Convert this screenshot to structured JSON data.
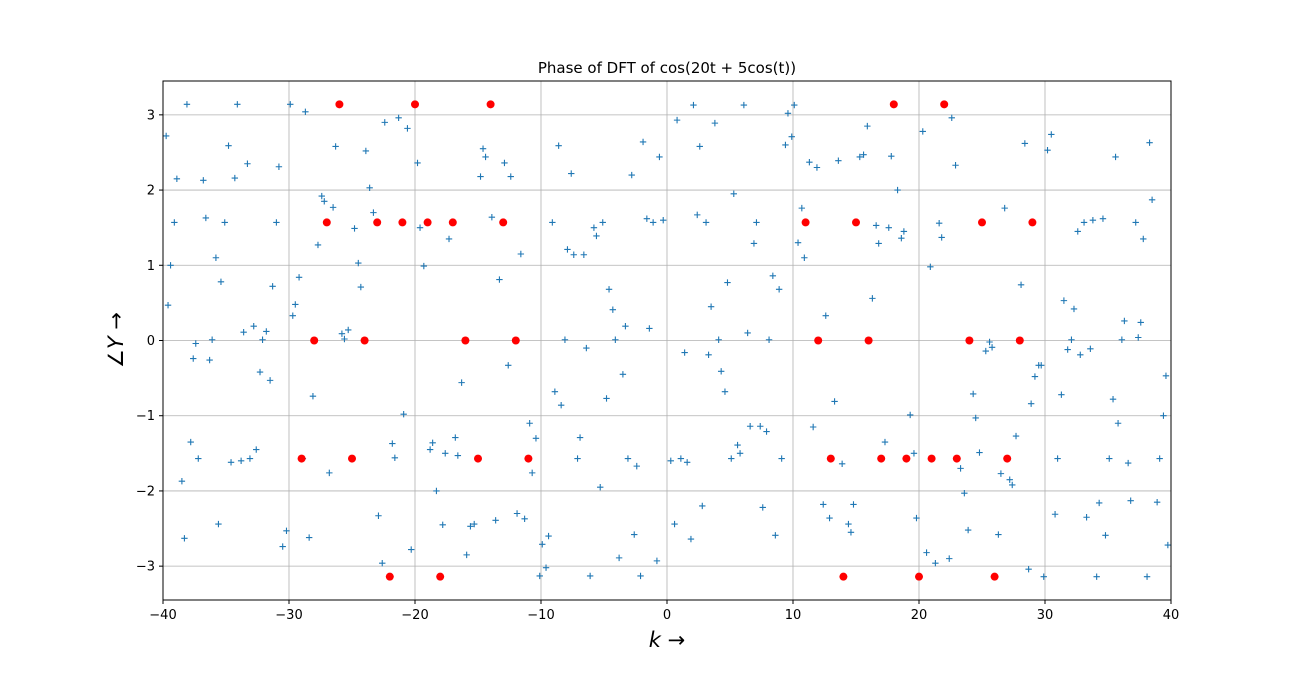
{
  "chart_data": {
    "type": "scatter",
    "title": "Phase of DFT of cos(20t + 5cos(t))",
    "xlabel": "k →",
    "ylabel": "∠Y →",
    "xlim": [
      -40,
      40
    ],
    "ylim": [
      -3.45,
      3.45
    ],
    "xticks": [
      -40,
      -30,
      -20,
      -10,
      0,
      10,
      20,
      30,
      40
    ],
    "yticks": [
      -3,
      -2,
      -1,
      0,
      1,
      2,
      3
    ],
    "grid": true,
    "series": [
      {
        "marker": "plus",
        "color": "#1f77b4",
        "points": [
          [
            -39.75,
            2.72
          ],
          [
            -39.6,
            0.47
          ],
          [
            -39.4,
            1.0
          ],
          [
            -39.1,
            1.57
          ],
          [
            -38.9,
            2.15
          ],
          [
            -38.5,
            -1.87
          ],
          [
            -38.3,
            -2.63
          ],
          [
            -38.1,
            3.14
          ],
          [
            -37.8,
            -1.35
          ],
          [
            -37.6,
            -0.24
          ],
          [
            -37.4,
            -0.04
          ],
          [
            -37.2,
            -1.57
          ],
          [
            -36.8,
            2.13
          ],
          [
            -36.6,
            1.63
          ],
          [
            -36.3,
            -0.26
          ],
          [
            -36.1,
            0.01
          ],
          [
            -35.8,
            1.1
          ],
          [
            -35.6,
            -2.44
          ],
          [
            -35.4,
            0.78
          ],
          [
            -35.1,
            1.57
          ],
          [
            -34.8,
            2.59
          ],
          [
            -34.6,
            -1.62
          ],
          [
            -34.3,
            2.16
          ],
          [
            -34.1,
            3.14
          ],
          [
            -33.8,
            -1.6
          ],
          [
            -33.6,
            0.11
          ],
          [
            -33.3,
            2.35
          ],
          [
            -33.1,
            -1.57
          ],
          [
            -32.8,
            0.19
          ],
          [
            -32.6,
            -1.45
          ],
          [
            -32.3,
            -0.42
          ],
          [
            -32.1,
            0.01
          ],
          [
            -31.8,
            0.12
          ],
          [
            -31.5,
            -0.53
          ],
          [
            -31.3,
            0.72
          ],
          [
            -31.0,
            1.57
          ],
          [
            -30.8,
            2.31
          ],
          [
            -30.5,
            -2.74
          ],
          [
            -30.2,
            -2.53
          ],
          [
            -29.9,
            3.14
          ],
          [
            -29.7,
            0.33
          ],
          [
            -29.5,
            0.48
          ],
          [
            -29.2,
            0.84
          ],
          [
            -28.9,
            -1.57
          ],
          [
            -28.7,
            3.04
          ],
          [
            -28.4,
            -2.62
          ],
          [
            -28.1,
            -0.74
          ],
          [
            -27.7,
            1.27
          ],
          [
            -27.4,
            1.92
          ],
          [
            -27.2,
            1.85
          ],
          [
            -26.8,
            -1.76
          ],
          [
            -26.5,
            1.77
          ],
          [
            -26.3,
            2.58
          ],
          [
            -25.8,
            0.09
          ],
          [
            -25.6,
            0.02
          ],
          [
            -25.3,
            0.14
          ],
          [
            -24.8,
            1.49
          ],
          [
            -24.5,
            1.03
          ],
          [
            -24.3,
            0.71
          ],
          [
            -23.9,
            2.52
          ],
          [
            -23.6,
            2.03
          ],
          [
            -23.3,
            1.7
          ],
          [
            -22.9,
            -2.33
          ],
          [
            -22.6,
            -2.96
          ],
          [
            -22.4,
            2.9
          ],
          [
            -21.8,
            -1.37
          ],
          [
            -21.6,
            -1.56
          ],
          [
            -21.3,
            2.96
          ],
          [
            -20.9,
            -0.98
          ],
          [
            -20.6,
            2.82
          ],
          [
            -20.3,
            -2.78
          ],
          [
            -19.8,
            2.36
          ],
          [
            -19.6,
            1.5
          ],
          [
            -19.3,
            0.99
          ],
          [
            -18.8,
            -1.45
          ],
          [
            -18.6,
            -1.36
          ],
          [
            -18.3,
            -2.0
          ],
          [
            -17.8,
            -2.45
          ],
          [
            -17.6,
            -1.5
          ],
          [
            -17.3,
            1.35
          ],
          [
            -16.8,
            -1.29
          ],
          [
            -16.6,
            -1.53
          ],
          [
            -16.3,
            -0.56
          ],
          [
            -15.9,
            -2.85
          ],
          [
            -15.6,
            -2.47
          ],
          [
            -15.3,
            -2.44
          ],
          [
            -14.8,
            2.18
          ],
          [
            -14.6,
            2.55
          ],
          [
            -14.4,
            2.44
          ],
          [
            -13.9,
            1.64
          ],
          [
            -13.6,
            -2.39
          ],
          [
            -13.3,
            0.81
          ],
          [
            -12.9,
            2.36
          ],
          [
            -12.6,
            -0.33
          ],
          [
            -12.4,
            2.18
          ],
          [
            -11.9,
            -2.3
          ],
          [
            -11.6,
            1.15
          ],
          [
            -11.3,
            -2.37
          ],
          [
            -10.9,
            -1.1
          ],
          [
            -10.7,
            -1.76
          ],
          [
            -10.4,
            -1.3
          ],
          [
            -10.1,
            -3.13
          ],
          [
            -9.9,
            -2.71
          ],
          [
            -9.6,
            -3.02
          ],
          [
            -9.4,
            -2.6
          ],
          [
            -9.1,
            1.57
          ],
          [
            -8.9,
            -0.68
          ],
          [
            -8.6,
            2.59
          ],
          [
            -8.4,
            -0.86
          ],
          [
            -8.1,
            0.01
          ],
          [
            -7.9,
            1.21
          ],
          [
            -7.6,
            2.22
          ],
          [
            -7.4,
            1.14
          ],
          [
            -7.1,
            -1.57
          ],
          [
            -6.9,
            -1.29
          ],
          [
            -6.6,
            1.14
          ],
          [
            -6.4,
            -0.1
          ],
          [
            -6.1,
            -3.13
          ],
          [
            -5.8,
            1.5
          ],
          [
            -5.6,
            1.39
          ],
          [
            -5.3,
            -1.95
          ],
          [
            -5.1,
            1.57
          ],
          [
            -4.8,
            -0.77
          ],
          [
            -4.6,
            0.68
          ],
          [
            -4.3,
            0.41
          ],
          [
            -4.1,
            0.01
          ],
          [
            -3.8,
            -2.89
          ],
          [
            -3.5,
            -0.45
          ],
          [
            -3.3,
            0.19
          ],
          [
            -3.1,
            -1.57
          ],
          [
            -2.8,
            2.2
          ],
          [
            -2.6,
            -2.58
          ],
          [
            -2.4,
            -1.67
          ],
          [
            -2.1,
            -3.13
          ],
          [
            -1.9,
            2.64
          ],
          [
            -1.6,
            1.62
          ],
          [
            -1.4,
            0.16
          ],
          [
            -1.1,
            1.57
          ],
          [
            -0.8,
            -2.93
          ],
          [
            -0.6,
            2.44
          ],
          [
            -0.3,
            1.6
          ],
          [
            0.3,
            -1.6
          ],
          [
            0.6,
            -2.44
          ],
          [
            0.8,
            2.93
          ],
          [
            1.1,
            -1.57
          ],
          [
            1.4,
            -0.16
          ],
          [
            1.6,
            -1.62
          ],
          [
            1.9,
            -2.64
          ],
          [
            2.1,
            3.13
          ],
          [
            2.4,
            1.67
          ],
          [
            2.6,
            2.58
          ],
          [
            2.8,
            -2.2
          ],
          [
            3.1,
            1.57
          ],
          [
            3.3,
            -0.19
          ],
          [
            3.5,
            0.45
          ],
          [
            3.8,
            2.89
          ],
          [
            4.1,
            0.01
          ],
          [
            4.3,
            -0.41
          ],
          [
            4.6,
            -0.68
          ],
          [
            4.8,
            0.77
          ],
          [
            5.1,
            -1.57
          ],
          [
            5.3,
            1.95
          ],
          [
            5.6,
            -1.39
          ],
          [
            5.8,
            -1.5
          ],
          [
            6.1,
            3.13
          ],
          [
            6.4,
            0.1
          ],
          [
            6.6,
            -1.14
          ],
          [
            6.9,
            1.29
          ],
          [
            7.1,
            1.57
          ],
          [
            7.4,
            -1.14
          ],
          [
            7.6,
            -2.22
          ],
          [
            7.9,
            -1.21
          ],
          [
            8.1,
            0.01
          ],
          [
            8.4,
            0.86
          ],
          [
            8.6,
            -2.59
          ],
          [
            8.9,
            0.68
          ],
          [
            9.1,
            -1.57
          ],
          [
            9.4,
            2.6
          ],
          [
            9.6,
            3.02
          ],
          [
            9.9,
            2.71
          ],
          [
            10.1,
            3.13
          ],
          [
            10.4,
            1.3
          ],
          [
            10.7,
            1.76
          ],
          [
            10.9,
            1.1
          ],
          [
            11.3,
            2.37
          ],
          [
            11.6,
            -1.15
          ],
          [
            11.9,
            2.3
          ],
          [
            12.4,
            -2.18
          ],
          [
            12.6,
            0.33
          ],
          [
            12.9,
            -2.36
          ],
          [
            13.3,
            -0.81
          ],
          [
            13.6,
            2.39
          ],
          [
            13.9,
            -1.64
          ],
          [
            14.4,
            -2.44
          ],
          [
            14.6,
            -2.55
          ],
          [
            14.8,
            -2.18
          ],
          [
            15.3,
            2.44
          ],
          [
            15.6,
            2.47
          ],
          [
            15.9,
            2.85
          ],
          [
            16.3,
            0.56
          ],
          [
            16.6,
            1.53
          ],
          [
            16.8,
            1.29
          ],
          [
            17.3,
            -1.35
          ],
          [
            17.6,
            1.5
          ],
          [
            17.8,
            2.45
          ],
          [
            18.3,
            2.0
          ],
          [
            18.6,
            1.36
          ],
          [
            18.8,
            1.45
          ],
          [
            19.3,
            -0.99
          ],
          [
            19.6,
            -1.5
          ],
          [
            19.8,
            -2.36
          ],
          [
            20.3,
            2.78
          ],
          [
            20.6,
            -2.82
          ],
          [
            20.9,
            0.98
          ],
          [
            21.3,
            -2.96
          ],
          [
            21.6,
            1.56
          ],
          [
            21.8,
            1.37
          ],
          [
            22.4,
            -2.9
          ],
          [
            22.6,
            2.96
          ],
          [
            22.9,
            2.33
          ],
          [
            23.3,
            -1.7
          ],
          [
            23.6,
            -2.03
          ],
          [
            23.9,
            -2.52
          ],
          [
            24.3,
            -0.71
          ],
          [
            24.5,
            -1.03
          ],
          [
            24.8,
            -1.49
          ],
          [
            25.3,
            -0.14
          ],
          [
            25.6,
            -0.02
          ],
          [
            25.8,
            -0.09
          ],
          [
            26.3,
            -2.58
          ],
          [
            26.5,
            -1.77
          ],
          [
            26.8,
            1.76
          ],
          [
            27.2,
            -1.85
          ],
          [
            27.4,
            -1.92
          ],
          [
            27.7,
            -1.27
          ],
          [
            28.1,
            0.74
          ],
          [
            28.4,
            2.62
          ],
          [
            28.7,
            -3.04
          ],
          [
            28.9,
            -0.84
          ],
          [
            29.2,
            -0.48
          ],
          [
            29.5,
            -0.33
          ],
          [
            29.7,
            -0.33
          ],
          [
            29.9,
            -3.14
          ],
          [
            30.2,
            2.53
          ],
          [
            30.5,
            2.74
          ],
          [
            30.8,
            -2.31
          ],
          [
            31.0,
            -1.57
          ],
          [
            31.3,
            -0.72
          ],
          [
            31.5,
            0.53
          ],
          [
            31.8,
            -0.12
          ],
          [
            32.1,
            0.01
          ],
          [
            32.3,
            0.42
          ],
          [
            32.6,
            1.45
          ],
          [
            32.8,
            -0.19
          ],
          [
            33.1,
            1.57
          ],
          [
            33.3,
            -2.35
          ],
          [
            33.6,
            -0.11
          ],
          [
            33.8,
            1.6
          ],
          [
            34.1,
            -3.14
          ],
          [
            34.3,
            -2.16
          ],
          [
            34.6,
            1.62
          ],
          [
            34.8,
            -2.59
          ],
          [
            35.1,
            -1.57
          ],
          [
            35.4,
            -0.78
          ],
          [
            35.6,
            2.44
          ],
          [
            35.8,
            -1.1
          ],
          [
            36.1,
            0.01
          ],
          [
            36.3,
            0.26
          ],
          [
            36.6,
            -1.63
          ],
          [
            36.8,
            -2.13
          ],
          [
            37.2,
            1.57
          ],
          [
            37.4,
            0.04
          ],
          [
            37.6,
            0.24
          ],
          [
            37.8,
            1.35
          ],
          [
            38.1,
            -3.14
          ],
          [
            38.3,
            2.63
          ],
          [
            38.5,
            1.87
          ],
          [
            38.9,
            -2.15
          ],
          [
            39.1,
            -1.57
          ],
          [
            39.4,
            -1.0
          ],
          [
            39.6,
            -0.47
          ],
          [
            39.75,
            -2.72
          ]
        ]
      },
      {
        "marker": "dot",
        "color": "#ff0000",
        "points": [
          [
            -29,
            -1.57
          ],
          [
            -28,
            0
          ],
          [
            -27,
            1.57
          ],
          [
            -26,
            3.14
          ],
          [
            -25,
            -1.57
          ],
          [
            -24,
            0
          ],
          [
            -23,
            1.57
          ],
          [
            -22,
            -3.14
          ],
          [
            -21,
            1.57
          ],
          [
            -20,
            3.14
          ],
          [
            -19,
            1.57
          ],
          [
            -18,
            -3.14
          ],
          [
            -17,
            1.57
          ],
          [
            -16,
            0
          ],
          [
            -15,
            -1.57
          ],
          [
            -14,
            3.14
          ],
          [
            -13,
            1.57
          ],
          [
            -12,
            0
          ],
          [
            -11,
            -1.57
          ],
          [
            11,
            1.57
          ],
          [
            12,
            0
          ],
          [
            13,
            -1.57
          ],
          [
            14,
            -3.14
          ],
          [
            15,
            1.57
          ],
          [
            16,
            0
          ],
          [
            17,
            -1.57
          ],
          [
            18,
            3.14
          ],
          [
            19,
            -1.57
          ],
          [
            20,
            -3.14
          ],
          [
            21,
            -1.57
          ],
          [
            22,
            3.14
          ],
          [
            23,
            -1.57
          ],
          [
            24,
            0
          ],
          [
            25,
            1.57
          ],
          [
            26,
            -3.14
          ],
          [
            27,
            -1.57
          ],
          [
            28,
            0
          ],
          [
            29,
            1.57
          ]
        ]
      }
    ]
  }
}
